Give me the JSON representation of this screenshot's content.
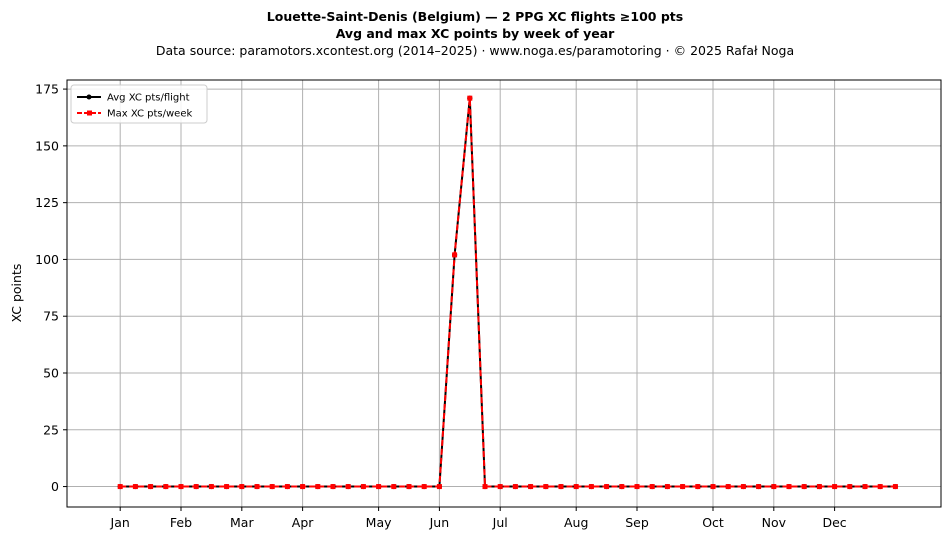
{
  "chart_data": {
    "type": "line",
    "title": "Louette-Saint-Denis (Belgium)  —  2 PPG XC flights ≥100 pts",
    "subtitle": "Avg and max XC points by week of year",
    "source_note": "Data source: paramotors.xcontest.org (2014–2025)  ·  www.noga.es/paramotoring  ·  © 2025 Rafał Noga",
    "xlabel": "",
    "ylabel": "XC points",
    "xlim": [
      -2.5,
      55
    ],
    "ylim": [
      -9,
      179
    ],
    "yticks": [
      0,
      25,
      50,
      75,
      100,
      125,
      150,
      175
    ],
    "xticks": [
      {
        "label": "Jan",
        "week": 1
      },
      {
        "label": "Feb",
        "week": 5
      },
      {
        "label": "Mar",
        "week": 9
      },
      {
        "label": "Apr",
        "week": 13
      },
      {
        "label": "May",
        "week": 18
      },
      {
        "label": "Jun",
        "week": 22
      },
      {
        "label": "Jul",
        "week": 26
      },
      {
        "label": "Aug",
        "week": 31
      },
      {
        "label": "Sep",
        "week": 35
      },
      {
        "label": "Oct",
        "week": 40
      },
      {
        "label": "Nov",
        "week": 44
      },
      {
        "label": "Dec",
        "week": 48
      }
    ],
    "grid": true,
    "legend_position": "top-left",
    "x": [
      1,
      2,
      3,
      4,
      5,
      6,
      7,
      8,
      9,
      10,
      11,
      12,
      13,
      14,
      15,
      16,
      17,
      18,
      19,
      20,
      21,
      22,
      23,
      24,
      25,
      26,
      27,
      28,
      29,
      30,
      31,
      32,
      33,
      34,
      35,
      36,
      37,
      38,
      39,
      40,
      41,
      42,
      43,
      44,
      45,
      46,
      47,
      48,
      49,
      50,
      51,
      52
    ],
    "series": [
      {
        "name": "Avg XC pts/flight",
        "color": "#000000",
        "style": "solid",
        "marker": "circle",
        "values": [
          0,
          0,
          0,
          0,
          0,
          0,
          0,
          0,
          0,
          0,
          0,
          0,
          0,
          0,
          0,
          0,
          0,
          0,
          0,
          0,
          0,
          0,
          102,
          171,
          0,
          0,
          0,
          0,
          0,
          0,
          0,
          0,
          0,
          0,
          0,
          0,
          0,
          0,
          0,
          0,
          0,
          0,
          0,
          0,
          0,
          0,
          0,
          0,
          0,
          0,
          0,
          0
        ]
      },
      {
        "name": "Max XC pts/week",
        "color": "#ff0000",
        "style": "dashed",
        "marker": "square",
        "values": [
          0,
          0,
          0,
          0,
          0,
          0,
          0,
          0,
          0,
          0,
          0,
          0,
          0,
          0,
          0,
          0,
          0,
          0,
          0,
          0,
          0,
          0,
          102,
          171,
          0,
          0,
          0,
          0,
          0,
          0,
          0,
          0,
          0,
          0,
          0,
          0,
          0,
          0,
          0,
          0,
          0,
          0,
          0,
          0,
          0,
          0,
          0,
          0,
          0,
          0,
          0,
          0
        ]
      }
    ]
  }
}
